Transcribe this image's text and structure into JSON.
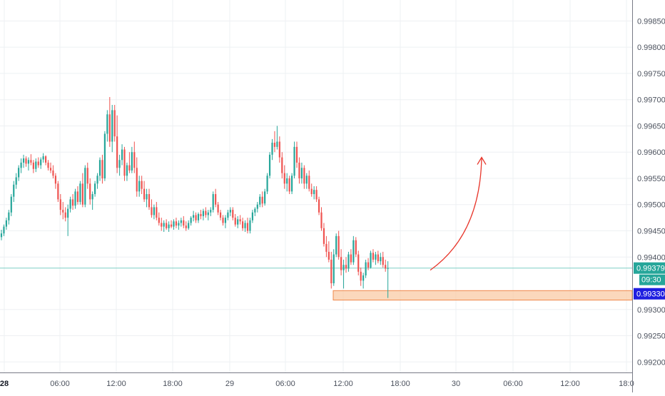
{
  "chart_data": {
    "type": "candlestick",
    "instrument_panel": {
      "side": "right"
    },
    "y_axis": {
      "range": [
        0.9918,
        0.9989
      ],
      "ticks": [
        "0.99850",
        "0.99800",
        "0.99750",
        "0.99700",
        "0.99650",
        "0.99600",
        "0.99550",
        "0.99500",
        "0.99450",
        "0.99400",
        "0.99300",
        "0.99250",
        "0.99200"
      ],
      "tick_values": [
        0.9985,
        0.998,
        0.9975,
        0.997,
        0.9965,
        0.996,
        0.9955,
        0.995,
        0.9945,
        0.994,
        0.993,
        0.9925,
        0.992
      ]
    },
    "x_axis": {
      "ticks": [
        "28",
        "06:00",
        "12:00",
        "18:00",
        "29",
        "06:00",
        "12:00",
        "18:00",
        "30",
        "06:00",
        "12:00",
        "18:0"
      ],
      "bold": [
        true,
        false,
        false,
        false,
        false,
        false,
        false,
        false,
        false,
        false,
        false,
        false
      ]
    },
    "grid": true,
    "colors": {
      "up": "#26a69a",
      "down": "#ef5350",
      "arrow": "#e8382d",
      "zone_fill": "#f9cba6",
      "zone_stroke": "#f0884a",
      "price_line": "#7fcfc6",
      "last_tag": "#26a69a",
      "level_tag": "#1e1ee0"
    },
    "last_price": {
      "value": 0.99379,
      "label": "0.99379",
      "countdown": "09:30"
    },
    "level_tag": {
      "value": 0.9933,
      "label": "0.99330"
    },
    "support_zone": {
      "low": 0.99318,
      "high": 0.99336,
      "start_candle": 173
    },
    "projection_arrow": {
      "from_price": 0.99375,
      "to_price": 0.9959,
      "note": "curved up arrow"
    },
    "candles_ohlc": [
      [
        0.99438,
        0.99452,
        0.99432,
        0.99445
      ],
      [
        0.99445,
        0.99462,
        0.9944,
        0.99458
      ],
      [
        0.99458,
        0.99475,
        0.99452,
        0.9947
      ],
      [
        0.9947,
        0.9949,
        0.99462,
        0.99485
      ],
      [
        0.99485,
        0.9952,
        0.99478,
        0.99515
      ],
      [
        0.99515,
        0.99545,
        0.99505,
        0.99538
      ],
      [
        0.99538,
        0.9956,
        0.9953,
        0.99552
      ],
      [
        0.99552,
        0.99575,
        0.99545,
        0.9957
      ],
      [
        0.9957,
        0.99588,
        0.9956,
        0.9958
      ],
      [
        0.9958,
        0.99595,
        0.9957,
        0.99588
      ],
      [
        0.99588,
        0.99592,
        0.99572,
        0.99578
      ],
      [
        0.99578,
        0.9959,
        0.99565,
        0.99585
      ],
      [
        0.99585,
        0.99596,
        0.99575,
        0.9958
      ],
      [
        0.9958,
        0.99585,
        0.9956,
        0.99568
      ],
      [
        0.99568,
        0.99588,
        0.99562,
        0.99582
      ],
      [
        0.99582,
        0.9959,
        0.9957,
        0.99575
      ],
      [
        0.99575,
        0.9959,
        0.99568,
        0.99586
      ],
      [
        0.99586,
        0.99598,
        0.9958,
        0.99592
      ],
      [
        0.99592,
        0.99594,
        0.99575,
        0.9958
      ],
      [
        0.9958,
        0.99585,
        0.99565,
        0.9957
      ],
      [
        0.9957,
        0.9958,
        0.9956,
        0.99565
      ],
      [
        0.99565,
        0.99575,
        0.9955,
        0.99555
      ],
      [
        0.99555,
        0.9956,
        0.9953,
        0.9954
      ],
      [
        0.9954,
        0.99545,
        0.99505,
        0.9951
      ],
      [
        0.9951,
        0.9952,
        0.9948,
        0.9949
      ],
      [
        0.9949,
        0.99505,
        0.99472,
        0.99485
      ],
      [
        0.99485,
        0.99495,
        0.99468,
        0.99475
      ],
      [
        0.99475,
        0.995,
        0.9944,
        0.99492
      ],
      [
        0.99492,
        0.99515,
        0.99485,
        0.9951
      ],
      [
        0.9951,
        0.9952,
        0.9949,
        0.99498
      ],
      [
        0.99498,
        0.9953,
        0.99492,
        0.99525
      ],
      [
        0.99525,
        0.99535,
        0.995,
        0.99505
      ],
      [
        0.99505,
        0.99545,
        0.995,
        0.9954
      ],
      [
        0.9954,
        0.9956,
        0.99495,
        0.995
      ],
      [
        0.995,
        0.99575,
        0.99495,
        0.9957
      ],
      [
        0.9957,
        0.9958,
        0.9953,
        0.9954
      ],
      [
        0.9954,
        0.9955,
        0.995,
        0.9951
      ],
      [
        0.9951,
        0.99525,
        0.9949,
        0.9952
      ],
      [
        0.9952,
        0.99545,
        0.99515,
        0.9954
      ],
      [
        0.9954,
        0.9956,
        0.9953,
        0.99555
      ],
      [
        0.99555,
        0.9959,
        0.99545,
        0.99585
      ],
      [
        0.99585,
        0.99595,
        0.9954,
        0.9955
      ],
      [
        0.9955,
        0.9964,
        0.99545,
        0.99635
      ],
      [
        0.99635,
        0.9968,
        0.9962,
        0.99672
      ],
      [
        0.99672,
        0.99705,
        0.9961,
        0.9962
      ],
      [
        0.9962,
        0.9969,
        0.996,
        0.9968
      ],
      [
        0.9968,
        0.9969,
        0.9962,
        0.9963
      ],
      [
        0.9963,
        0.9967,
        0.9956,
        0.9957
      ],
      [
        0.9957,
        0.99595,
        0.99555,
        0.99585
      ],
      [
        0.99585,
        0.99615,
        0.99575,
        0.99605
      ],
      [
        0.99605,
        0.9961,
        0.99545,
        0.99555
      ],
      [
        0.99555,
        0.9958,
        0.99545,
        0.99575
      ],
      [
        0.99575,
        0.996,
        0.9956,
        0.99565
      ],
      [
        0.99565,
        0.9961,
        0.9956,
        0.996
      ],
      [
        0.996,
        0.9962,
        0.9956,
        0.9957
      ],
      [
        0.9957,
        0.9959,
        0.99515,
        0.99525
      ],
      [
        0.99525,
        0.99555,
        0.99515,
        0.99545
      ],
      [
        0.99545,
        0.99555,
        0.9952,
        0.9953
      ],
      [
        0.9953,
        0.99545,
        0.99505,
        0.9951
      ],
      [
        0.9951,
        0.9953,
        0.99495,
        0.9952
      ],
      [
        0.9952,
        0.9953,
        0.9949,
        0.99495
      ],
      [
        0.99495,
        0.9951,
        0.99475,
        0.9948
      ],
      [
        0.9948,
        0.995,
        0.99472,
        0.99495
      ],
      [
        0.99495,
        0.99505,
        0.9947,
        0.99475
      ],
      [
        0.99475,
        0.99485,
        0.9946,
        0.99465
      ],
      [
        0.99465,
        0.99475,
        0.9945,
        0.99458
      ],
      [
        0.99458,
        0.9947,
        0.99448,
        0.99465
      ],
      [
        0.99465,
        0.99472,
        0.99452,
        0.99455
      ],
      [
        0.99455,
        0.99468,
        0.99448,
        0.99462
      ],
      [
        0.99462,
        0.9947,
        0.99455,
        0.99458
      ],
      [
        0.99458,
        0.99472,
        0.99452,
        0.99468
      ],
      [
        0.99468,
        0.99475,
        0.99455,
        0.9946
      ],
      [
        0.9946,
        0.9947,
        0.99452,
        0.99465
      ],
      [
        0.99465,
        0.99475,
        0.99458,
        0.9947
      ],
      [
        0.9947,
        0.99478,
        0.99455,
        0.9946
      ],
      [
        0.9946,
        0.99468,
        0.9945,
        0.99455
      ],
      [
        0.99455,
        0.9947,
        0.99452,
        0.99465
      ],
      [
        0.99465,
        0.99478,
        0.9946,
        0.99475
      ],
      [
        0.99475,
        0.99488,
        0.99468,
        0.9948
      ],
      [
        0.9948,
        0.99485,
        0.99465,
        0.9947
      ],
      [
        0.9947,
        0.99485,
        0.99465,
        0.99482
      ],
      [
        0.99482,
        0.9949,
        0.99472,
        0.99478
      ],
      [
        0.99478,
        0.99492,
        0.9947,
        0.99488
      ],
      [
        0.99488,
        0.99495,
        0.99475,
        0.9948
      ],
      [
        0.9948,
        0.9949,
        0.9947,
        0.99485
      ],
      [
        0.99485,
        0.99495,
        0.99478,
        0.9949
      ],
      [
        0.9949,
        0.99525,
        0.99485,
        0.9952
      ],
      [
        0.9952,
        0.9953,
        0.99495,
        0.995
      ],
      [
        0.995,
        0.99505,
        0.9948,
        0.99485
      ],
      [
        0.99485,
        0.9949,
        0.9947,
        0.99475
      ],
      [
        0.99475,
        0.9948,
        0.9946,
        0.99465
      ],
      [
        0.99465,
        0.9948,
        0.99455,
        0.99475
      ],
      [
        0.99475,
        0.9949,
        0.9947,
        0.99485
      ],
      [
        0.99485,
        0.99495,
        0.99478,
        0.9949
      ],
      [
        0.9949,
        0.99495,
        0.9947,
        0.99475
      ],
      [
        0.99475,
        0.99482,
        0.99458,
        0.99462
      ],
      [
        0.99462,
        0.99478,
        0.99455,
        0.99472
      ],
      [
        0.99472,
        0.9948,
        0.99462,
        0.99468
      ],
      [
        0.99468,
        0.99475,
        0.9945,
        0.99455
      ],
      [
        0.99455,
        0.9947,
        0.99448,
        0.99465
      ],
      [
        0.99465,
        0.99475,
        0.99445,
        0.9945
      ],
      [
        0.9945,
        0.99475,
        0.99445,
        0.9947
      ],
      [
        0.9947,
        0.9949,
        0.99465,
        0.99485
      ],
      [
        0.99485,
        0.99495,
        0.99478,
        0.99492
      ],
      [
        0.99492,
        0.99505,
        0.99485,
        0.995
      ],
      [
        0.995,
        0.9952,
        0.99495,
        0.99515
      ],
      [
        0.99515,
        0.99525,
        0.99495,
        0.99502
      ],
      [
        0.99502,
        0.9953,
        0.99498,
        0.99525
      ],
      [
        0.99525,
        0.9956,
        0.9952,
        0.99555
      ],
      [
        0.99555,
        0.996,
        0.9955,
        0.99595
      ],
      [
        0.99595,
        0.99625,
        0.99585,
        0.99618
      ],
      [
        0.99618,
        0.9964,
        0.996,
        0.9961
      ],
      [
        0.9961,
        0.9965,
        0.99605,
        0.9962
      ],
      [
        0.9962,
        0.9963,
        0.9958,
        0.9959
      ],
      [
        0.9959,
        0.996,
        0.9955,
        0.9956
      ],
      [
        0.9956,
        0.99575,
        0.9953,
        0.9954
      ],
      [
        0.9954,
        0.9956,
        0.99525,
        0.9955
      ],
      [
        0.9955,
        0.99555,
        0.9952,
        0.99525
      ],
      [
        0.99525,
        0.9956,
        0.9952,
        0.99555
      ],
      [
        0.99555,
        0.9962,
        0.9955,
        0.9961
      ],
      [
        0.9961,
        0.9962,
        0.9957,
        0.9958
      ],
      [
        0.9958,
        0.9959,
        0.9954,
        0.9955
      ],
      [
        0.9955,
        0.9958,
        0.9954,
        0.9957
      ],
      [
        0.9957,
        0.99575,
        0.9953,
        0.9954
      ],
      [
        0.9954,
        0.9956,
        0.9953,
        0.99555
      ],
      [
        0.99555,
        0.99565,
        0.99525,
        0.9953
      ],
      [
        0.9953,
        0.9954,
        0.99515,
        0.9952
      ],
      [
        0.9952,
        0.99535,
        0.9951,
        0.99528
      ],
      [
        0.99528,
        0.99535,
        0.99505,
        0.9951
      ],
      [
        0.9951,
        0.99515,
        0.9948,
        0.99485
      ],
      [
        0.99485,
        0.99495,
        0.9945,
        0.99455
      ],
      [
        0.99455,
        0.99465,
        0.9942,
        0.99425
      ],
      [
        0.99425,
        0.9944,
        0.994,
        0.9941
      ],
      [
        0.9941,
        0.9943,
        0.9939,
        0.99395
      ],
      [
        0.99395,
        0.9941,
        0.9934,
        0.9935
      ],
      [
        0.9935,
        0.99415,
        0.99345,
        0.99405
      ],
      [
        0.99405,
        0.99445,
        0.994,
        0.9944
      ],
      [
        0.9944,
        0.9945,
        0.99395,
        0.994
      ],
      [
        0.994,
        0.99415,
        0.99365,
        0.99375
      ],
      [
        0.99375,
        0.99395,
        0.9934,
        0.99385
      ],
      [
        0.99385,
        0.994,
        0.9937,
        0.99378
      ],
      [
        0.99378,
        0.9941,
        0.99372,
        0.99405
      ],
      [
        0.99405,
        0.99415,
        0.99385,
        0.9939
      ],
      [
        0.9939,
        0.9944,
        0.99385,
        0.99432
      ],
      [
        0.99432,
        0.99438,
        0.994,
        0.99405
      ],
      [
        0.99405,
        0.99412,
        0.99365,
        0.99372
      ],
      [
        0.99372,
        0.9938,
        0.99345,
        0.99355
      ],
      [
        0.99355,
        0.9937,
        0.9934,
        0.99365
      ],
      [
        0.99365,
        0.99395,
        0.9936,
        0.9939
      ],
      [
        0.9939,
        0.99398,
        0.99375,
        0.9938
      ],
      [
        0.9938,
        0.99412,
        0.99378,
        0.99408
      ],
      [
        0.99408,
        0.99415,
        0.9939,
        0.99395
      ],
      [
        0.99395,
        0.9941,
        0.99385,
        0.99405
      ],
      [
        0.99405,
        0.99412,
        0.99388,
        0.99392
      ],
      [
        0.99392,
        0.99408,
        0.99385,
        0.994
      ],
      [
        0.994,
        0.9941,
        0.9938,
        0.99385
      ],
      [
        0.99385,
        0.99395,
        0.99372,
        0.99378
      ],
      [
        0.99378,
        0.99392,
        0.99322,
        0.99379
      ]
    ]
  }
}
